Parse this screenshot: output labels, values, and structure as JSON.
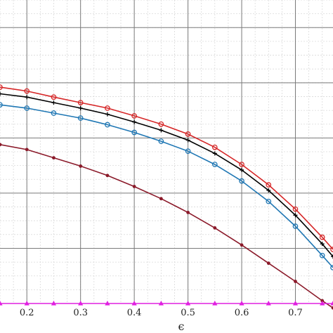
{
  "chart_data": {
    "type": "line",
    "xlabel": "ϵ",
    "ylabel": "",
    "xlim": [
      0.15,
      0.77
    ],
    "ylim": [
      0.0,
      0.55
    ],
    "x_ticks": [
      "0.2",
      "0.3",
      "0.4",
      "0.5",
      "0.6",
      "0.7"
    ],
    "x_tick_values": [
      0.2,
      0.3,
      0.4,
      0.5,
      0.6,
      0.7
    ],
    "y_major_gridlines": [
      0.1,
      0.2,
      0.3,
      0.4,
      0.5
    ],
    "grid": true,
    "minor_grid": true,
    "series": [
      {
        "color": "#d62728",
        "marker": "circle-open",
        "x": [
          0.15,
          0.2,
          0.25,
          0.3,
          0.35,
          0.4,
          0.45,
          0.5,
          0.55,
          0.6,
          0.65,
          0.7,
          0.75,
          0.77
        ],
        "y": [
          0.392,
          0.385,
          0.374,
          0.364,
          0.354,
          0.34,
          0.325,
          0.307,
          0.283,
          0.252,
          0.215,
          0.171,
          0.12,
          0.098
        ]
      },
      {
        "color": "#000000",
        "marker": "plus",
        "x": [
          0.15,
          0.2,
          0.25,
          0.3,
          0.35,
          0.4,
          0.45,
          0.5,
          0.55,
          0.6,
          0.65,
          0.7,
          0.75,
          0.77
        ],
        "y": [
          0.38,
          0.374,
          0.364,
          0.354,
          0.343,
          0.329,
          0.314,
          0.296,
          0.272,
          0.242,
          0.205,
          0.16,
          0.108,
          0.085
        ]
      },
      {
        "color": "#1f77b4",
        "marker": "circle-open",
        "x": [
          0.15,
          0.2,
          0.25,
          0.3,
          0.35,
          0.4,
          0.45,
          0.5,
          0.55,
          0.6,
          0.65,
          0.7,
          0.75,
          0.77
        ],
        "y": [
          0.36,
          0.354,
          0.345,
          0.336,
          0.324,
          0.31,
          0.294,
          0.276,
          0.252,
          0.222,
          0.185,
          0.14,
          0.087,
          0.065
        ]
      },
      {
        "color": "#8b1a2a",
        "marker": "dot",
        "x": [
          0.15,
          0.2,
          0.25,
          0.3,
          0.35,
          0.4,
          0.45,
          0.5,
          0.55,
          0.6,
          0.65,
          0.7,
          0.75,
          0.77
        ],
        "y": [
          0.288,
          0.279,
          0.264,
          0.249,
          0.232,
          0.212,
          0.19,
          0.165,
          0.137,
          0.106,
          0.073,
          0.04,
          0.005,
          -0.008
        ]
      },
      {
        "color": "#e020e0",
        "marker": "triangle",
        "x": [
          0.15,
          0.2,
          0.25,
          0.3,
          0.35,
          0.4,
          0.45,
          0.5,
          0.55,
          0.6,
          0.65,
          0.7,
          0.75,
          0.77
        ],
        "y": [
          0.0,
          0.0,
          0.0,
          0.0,
          0.0,
          0.0,
          0.0,
          0.0,
          0.0,
          0.0,
          0.0,
          0.0,
          0.0,
          0.0
        ]
      }
    ]
  }
}
